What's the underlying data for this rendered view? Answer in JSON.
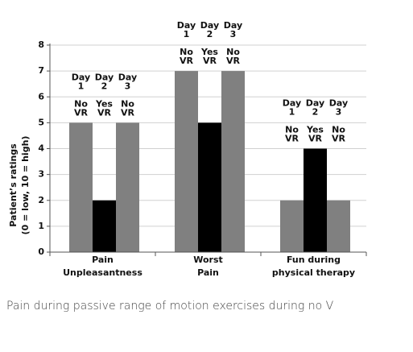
{
  "chart_data": {
    "type": "bar",
    "ylabel": [
      "Patient’s ratings",
      "(0 = low, 10 = high)"
    ],
    "categories": [
      [
        "Pain",
        "Unpleasantness"
      ],
      [
        "Worst",
        "Pain"
      ],
      [
        "Fun during",
        "physical therapy"
      ]
    ],
    "series": [
      {
        "day": [
          "Day",
          "1"
        ],
        "condition": [
          "No",
          "VR"
        ],
        "color": "#808080",
        "values": [
          5,
          7,
          2
        ]
      },
      {
        "day": [
          "Day",
          "2"
        ],
        "condition": [
          "Yes",
          "VR"
        ],
        "color": "#000000",
        "values": [
          2,
          5,
          4
        ]
      },
      {
        "day": [
          "Day",
          "3"
        ],
        "condition": [
          "No",
          "VR"
        ],
        "color": "#808080",
        "values": [
          5,
          7,
          2
        ]
      }
    ],
    "ylim": [
      0,
      8
    ],
    "yticks": [
      0,
      1,
      2,
      3,
      4,
      5,
      6,
      7,
      8
    ],
    "grid": true
  },
  "caption": "Pain during passive range of motion exercises during no V"
}
